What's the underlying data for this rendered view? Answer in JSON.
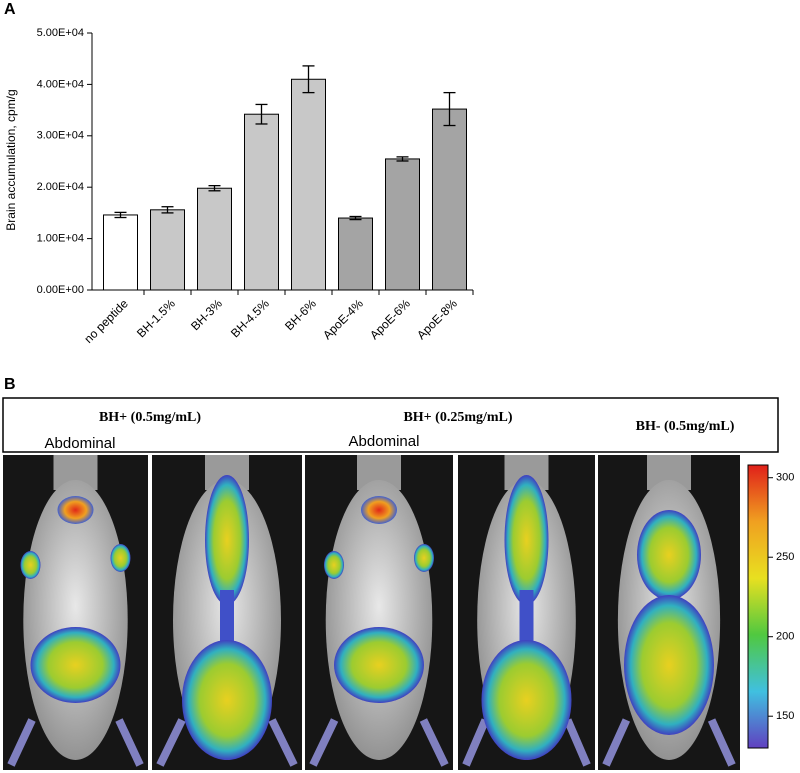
{
  "chart_data": {
    "type": "bar",
    "panel_label": "A",
    "y_label": "Brain accumulation, cpm/g",
    "categories": [
      "no peptide",
      "BH-1.5%",
      "BH-3%",
      "BH-4.5%",
      "BH-6%",
      "ApoE-4%",
      "ApoE-6%",
      "ApoE-8%"
    ],
    "values": [
      14600,
      15600,
      19800,
      34200,
      41000,
      14000,
      25500,
      35200
    ],
    "errors": [
      500,
      600,
      500,
      1900,
      2600,
      300,
      400,
      3200
    ],
    "colors": [
      "#ffffff",
      "#c8c8c8",
      "#c8c8c8",
      "#c8c8c8",
      "#c8c8c8",
      "#a4a4a4",
      "#a4a4a4",
      "#a4a4a4"
    ],
    "ylim": [
      0,
      50000
    ],
    "yticks": [
      {
        "value": 0,
        "label": "0.00E+00"
      },
      {
        "value": 10000,
        "label": "1.00E+04"
      },
      {
        "value": 20000,
        "label": "2.00E+04"
      },
      {
        "value": 30000,
        "label": "3.00E+04"
      },
      {
        "value": 40000,
        "label": "4.00E+04"
      },
      {
        "value": 50000,
        "label": "5.00E+04"
      }
    ]
  },
  "panel_b": {
    "panel_label": "B",
    "headers": [
      "BH+ (0.5mg/mL)",
      "BH+ (0.25mg/mL)",
      "BH- (0.5mg/mL)"
    ],
    "image_labels": [
      "Abdominal",
      "Abdominal"
    ],
    "colorbar": {
      "lim": [
        130,
        308
      ],
      "ticks": [
        150,
        200,
        250,
        300
      ]
    }
  }
}
